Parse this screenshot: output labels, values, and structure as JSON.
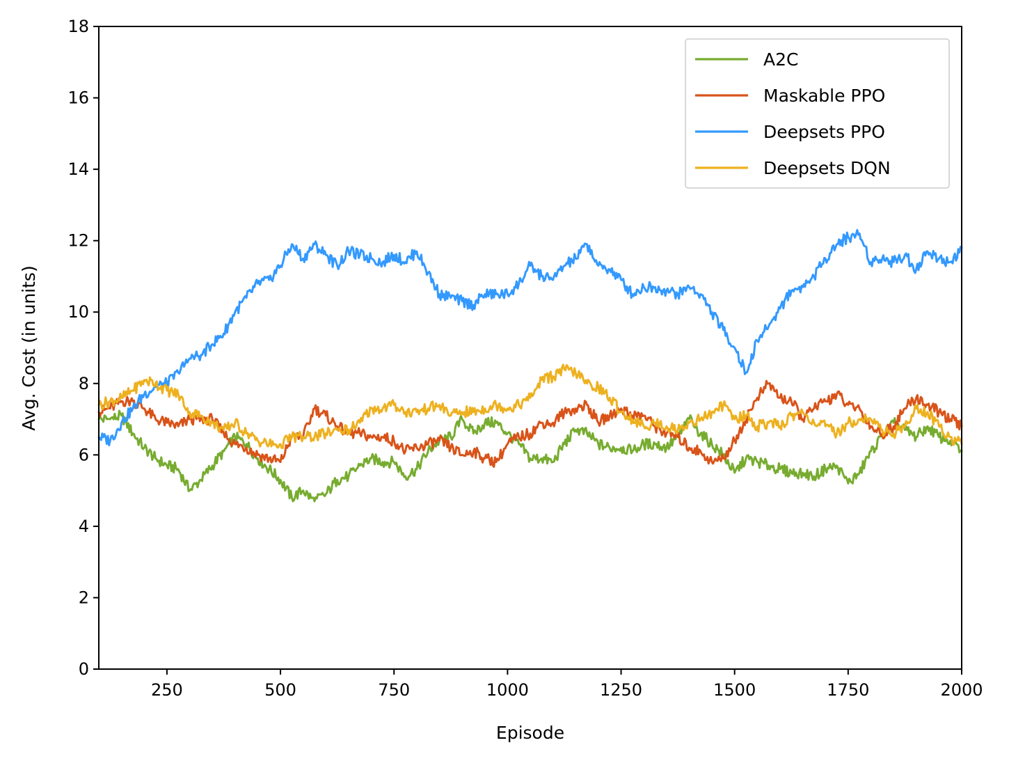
{
  "chart_data": {
    "type": "line",
    "title": "",
    "xlabel": "Episode",
    "ylabel": "Avg. Cost (in units)",
    "xlim": [
      100,
      2000
    ],
    "ylim": [
      0,
      18
    ],
    "xticks": [
      250,
      500,
      750,
      1000,
      1250,
      1500,
      1750,
      2000
    ],
    "yticks": [
      0,
      2,
      4,
      6,
      8,
      10,
      12,
      14,
      16,
      18
    ],
    "grid": false,
    "legend_position": "top-right",
    "series": [
      {
        "name": "A2C",
        "color": "#77AC30",
        "x": [
          100,
          125,
          150,
          175,
          200,
          225,
          250,
          275,
          300,
          325,
          350,
          375,
          400,
          425,
          450,
          475,
          500,
          525,
          550,
          575,
          600,
          625,
          650,
          675,
          700,
          725,
          750,
          775,
          800,
          825,
          850,
          875,
          900,
          925,
          950,
          975,
          1000,
          1025,
          1050,
          1075,
          1100,
          1125,
          1150,
          1175,
          1200,
          1225,
          1250,
          1275,
          1300,
          1325,
          1350,
          1375,
          1400,
          1425,
          1450,
          1475,
          1500,
          1525,
          1550,
          1575,
          1600,
          1625,
          1650,
          1675,
          1700,
          1725,
          1750,
          1775,
          1800,
          1825,
          1850,
          1875,
          1900,
          1925,
          1950,
          1975,
          2000
        ],
        "y": [
          7.0,
          7.0,
          7.1,
          6.6,
          6.2,
          5.9,
          5.7,
          5.6,
          5.0,
          5.3,
          5.7,
          6.1,
          6.5,
          6.3,
          5.9,
          5.6,
          5.3,
          4.8,
          5.0,
          4.7,
          4.9,
          5.3,
          5.4,
          5.7,
          5.9,
          5.8,
          5.8,
          5.4,
          5.6,
          6.1,
          6.4,
          6.5,
          7.0,
          6.6,
          6.9,
          6.9,
          6.6,
          6.3,
          5.9,
          5.9,
          5.8,
          6.3,
          6.7,
          6.6,
          6.3,
          6.2,
          6.2,
          6.1,
          6.3,
          6.3,
          6.2,
          6.5,
          7.0,
          6.6,
          6.3,
          6.0,
          5.5,
          5.9,
          5.8,
          5.7,
          5.6,
          5.5,
          5.5,
          5.4,
          5.6,
          5.7,
          5.2,
          5.5,
          6.1,
          6.5,
          6.9,
          6.7,
          6.5,
          6.8,
          6.5,
          6.4,
          6.1
        ]
      },
      {
        "name": "Maskable PPO",
        "color": "#D95319",
        "x": [
          100,
          125,
          150,
          175,
          200,
          225,
          250,
          275,
          300,
          325,
          350,
          375,
          400,
          425,
          450,
          475,
          500,
          525,
          550,
          575,
          600,
          625,
          650,
          675,
          700,
          725,
          750,
          775,
          800,
          825,
          850,
          875,
          900,
          925,
          950,
          975,
          1000,
          1025,
          1050,
          1075,
          1100,
          1125,
          1150,
          1175,
          1200,
          1225,
          1250,
          1275,
          1300,
          1325,
          1350,
          1375,
          1400,
          1425,
          1450,
          1475,
          1500,
          1525,
          1550,
          1575,
          1600,
          1625,
          1650,
          1675,
          1700,
          1725,
          1750,
          1775,
          1800,
          1825,
          1850,
          1875,
          1900,
          1925,
          1950,
          1975,
          2000
        ],
        "y": [
          7.2,
          7.3,
          7.5,
          7.5,
          7.3,
          7.0,
          6.9,
          6.8,
          7.0,
          7.0,
          7.0,
          6.6,
          6.3,
          6.2,
          6.0,
          5.9,
          5.8,
          6.5,
          6.5,
          7.3,
          7.1,
          6.8,
          6.6,
          6.6,
          6.5,
          6.5,
          6.4,
          6.1,
          6.2,
          6.3,
          6.4,
          6.2,
          6.0,
          6.1,
          5.9,
          5.8,
          6.3,
          6.5,
          6.6,
          6.9,
          6.9,
          7.2,
          7.3,
          7.4,
          6.9,
          7.1,
          7.3,
          7.1,
          7.1,
          6.8,
          6.6,
          6.5,
          6.2,
          6.1,
          5.8,
          5.9,
          6.4,
          7.0,
          7.6,
          8.0,
          7.6,
          7.5,
          7.0,
          7.3,
          7.5,
          7.7,
          7.4,
          7.3,
          6.8,
          6.6,
          6.8,
          7.3,
          7.6,
          7.4,
          7.2,
          7.0,
          6.8
        ]
      },
      {
        "name": "Deepsets PPO",
        "color": "#3399FF",
        "x": [
          100,
          125,
          150,
          175,
          200,
          225,
          250,
          275,
          300,
          325,
          350,
          375,
          400,
          425,
          450,
          475,
          500,
          525,
          550,
          575,
          600,
          625,
          650,
          675,
          700,
          725,
          750,
          775,
          800,
          825,
          850,
          875,
          900,
          925,
          950,
          975,
          1000,
          1025,
          1050,
          1075,
          1100,
          1125,
          1150,
          1175,
          1200,
          1225,
          1250,
          1275,
          1300,
          1325,
          1350,
          1375,
          1400,
          1425,
          1450,
          1475,
          1500,
          1525,
          1550,
          1575,
          1600,
          1625,
          1650,
          1675,
          1700,
          1725,
          1750,
          1775,
          1800,
          1825,
          1850,
          1875,
          1900,
          1925,
          1950,
          1975,
          2000
        ],
        "y": [
          6.5,
          6.4,
          6.9,
          7.3,
          7.7,
          7.9,
          8.0,
          8.3,
          8.7,
          8.8,
          9.1,
          9.4,
          10.0,
          10.4,
          10.8,
          10.9,
          11.3,
          11.9,
          11.5,
          11.9,
          11.6,
          11.3,
          11.7,
          11.6,
          11.5,
          11.4,
          11.6,
          11.4,
          11.7,
          11.1,
          10.5,
          10.4,
          10.3,
          10.2,
          10.5,
          10.5,
          10.5,
          10.8,
          11.3,
          11.0,
          10.9,
          11.3,
          11.5,
          11.9,
          11.3,
          11.2,
          10.9,
          10.5,
          10.7,
          10.7,
          10.6,
          10.5,
          10.7,
          10.5,
          10.0,
          9.5,
          9.0,
          8.3,
          9.2,
          9.6,
          10.1,
          10.6,
          10.7,
          11.0,
          11.5,
          11.9,
          12.1,
          12.2,
          11.4,
          11.5,
          11.4,
          11.6,
          11.2,
          11.7,
          11.5,
          11.4,
          11.8
        ]
      },
      {
        "name": "Deepsets DQN",
        "color": "#EDB120",
        "x": [
          100,
          125,
          150,
          175,
          200,
          225,
          250,
          275,
          300,
          325,
          350,
          375,
          400,
          425,
          450,
          475,
          500,
          525,
          550,
          575,
          600,
          625,
          650,
          675,
          700,
          725,
          750,
          775,
          800,
          825,
          850,
          875,
          900,
          925,
          950,
          975,
          1000,
          1025,
          1050,
          1075,
          1100,
          1125,
          1150,
          1175,
          1200,
          1225,
          1250,
          1275,
          1300,
          1325,
          1350,
          1375,
          1400,
          1425,
          1450,
          1475,
          1500,
          1525,
          1550,
          1575,
          1600,
          1625,
          1650,
          1675,
          1700,
          1725,
          1750,
          1775,
          1800,
          1825,
          1850,
          1875,
          1900,
          1925,
          1950,
          1975,
          2000
        ],
        "y": [
          7.4,
          7.5,
          7.6,
          7.8,
          8.1,
          8.0,
          7.8,
          7.7,
          7.2,
          7.1,
          6.9,
          6.7,
          6.9,
          6.6,
          6.4,
          6.3,
          6.3,
          6.5,
          6.5,
          6.5,
          6.6,
          6.7,
          6.7,
          6.9,
          7.3,
          7.3,
          7.4,
          7.2,
          7.2,
          7.3,
          7.4,
          7.1,
          7.2,
          7.2,
          7.3,
          7.4,
          7.3,
          7.4,
          7.6,
          8.1,
          8.2,
          8.4,
          8.3,
          8.0,
          7.9,
          7.6,
          7.2,
          7.0,
          6.8,
          6.9,
          6.8,
          6.7,
          6.9,
          7.0,
          7.2,
          7.4,
          7.0,
          7.1,
          6.8,
          6.9,
          6.8,
          7.1,
          7.2,
          6.9,
          6.8,
          6.6,
          6.9,
          7.0,
          7.0,
          6.7,
          6.6,
          6.8,
          7.3,
          7.2,
          6.8,
          6.5,
          6.3
        ]
      }
    ]
  }
}
